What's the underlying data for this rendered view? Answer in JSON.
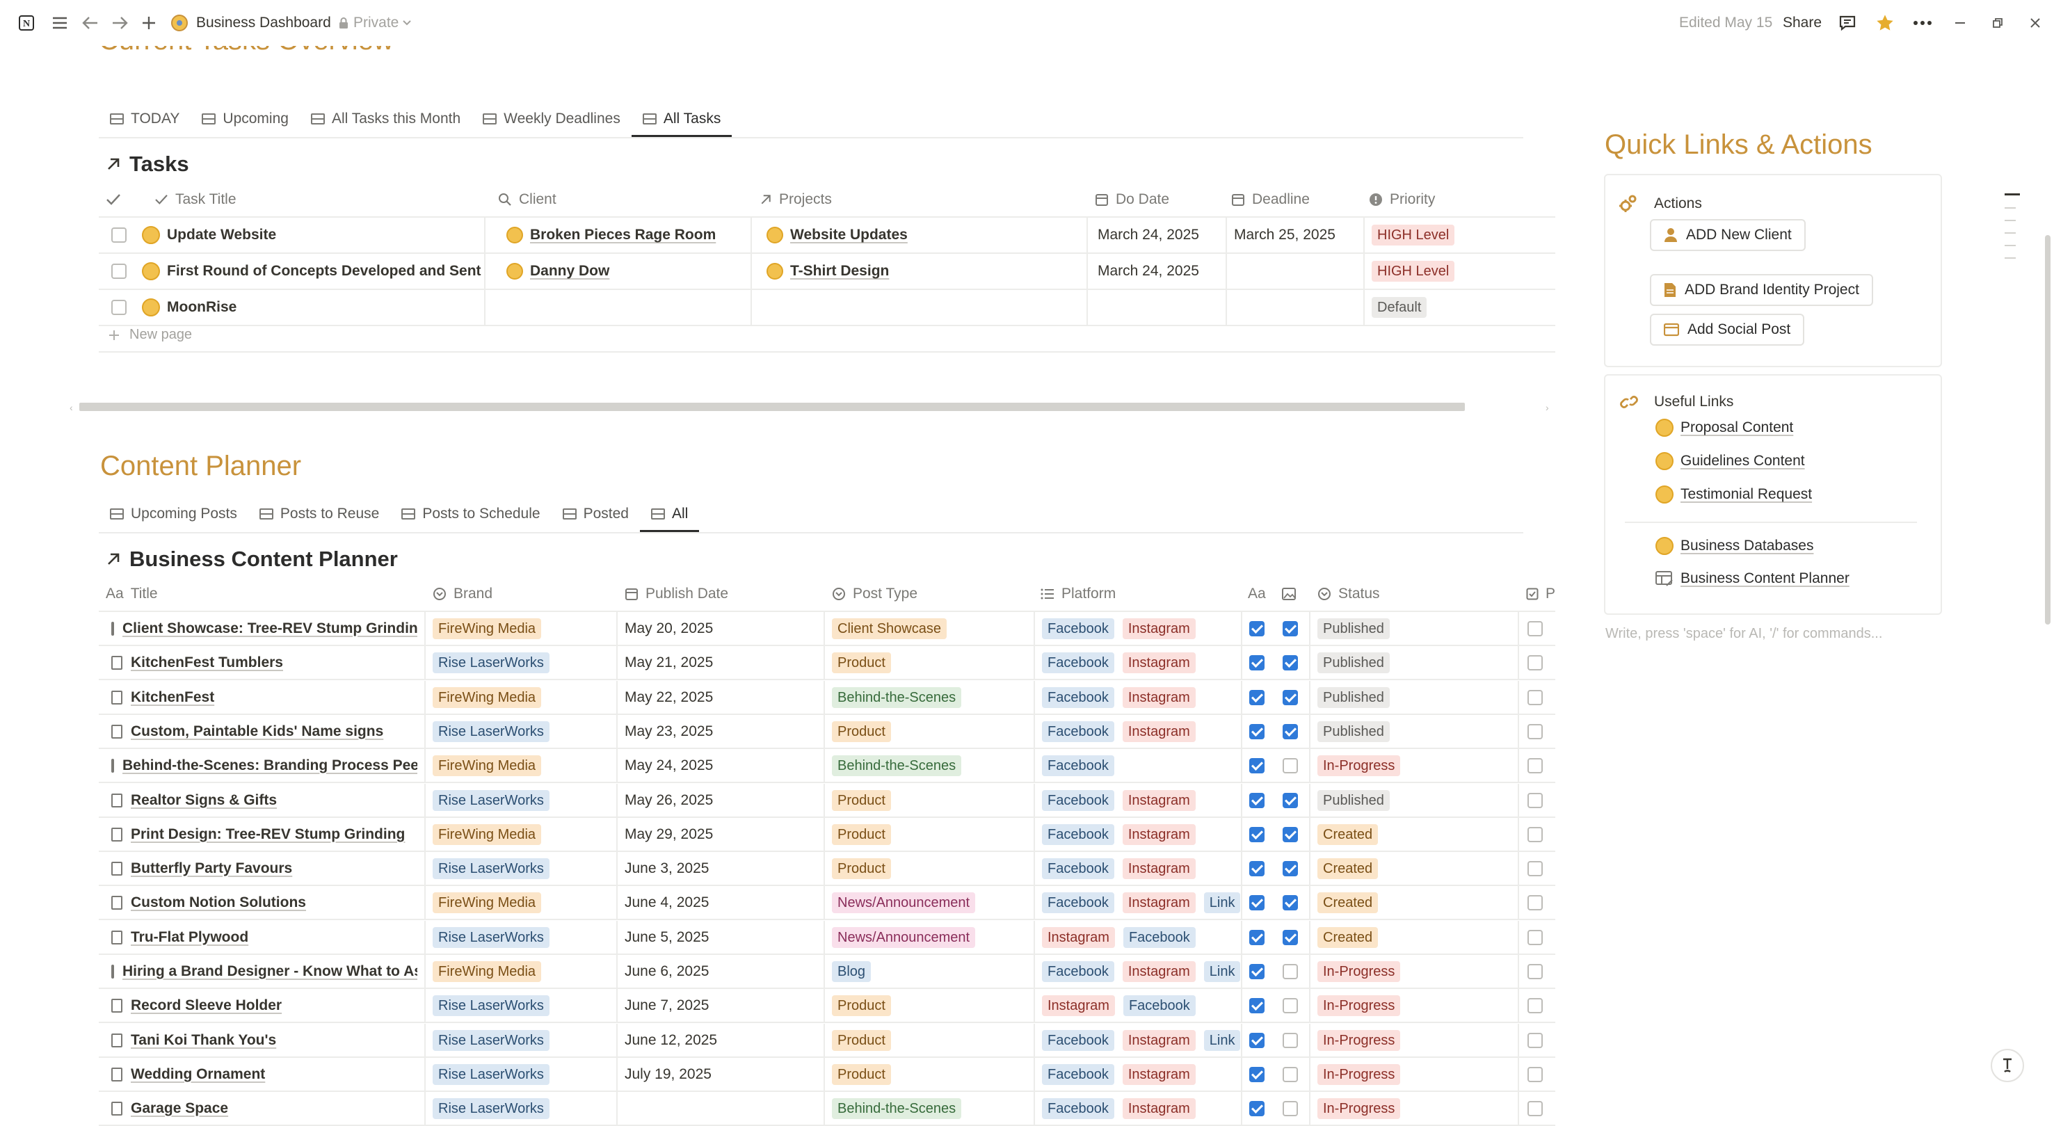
{
  "topbar": {
    "page_title": "Business Dashboard",
    "privacy": "Private",
    "edited": "Edited May 15",
    "share": "Share"
  },
  "tasks_section": {
    "heading": "Current Tasks Overview",
    "tabs": [
      {
        "label": "TODAY"
      },
      {
        "label": "Upcoming"
      },
      {
        "label": "All Tasks this Month"
      },
      {
        "label": "Weekly Deadlines"
      },
      {
        "label": "All Tasks",
        "active": true
      }
    ],
    "db_title": "Tasks",
    "columns": [
      "Task Title",
      "Client",
      "Projects",
      "Do Date",
      "Deadline",
      "Priority"
    ],
    "rows": [
      {
        "title": "Update Website",
        "client": "Broken Pieces Rage Room",
        "project": "Website Updates",
        "do_date": "March 24, 2025",
        "deadline": "March 25, 2025",
        "priority": "HIGH Level"
      },
      {
        "title": "First Round of Concepts Developed and Sent",
        "client": "Danny Dow",
        "project": "T-Shirt Design",
        "do_date": "March 24, 2025",
        "deadline": "",
        "priority": "HIGH Level"
      },
      {
        "title": "MoonRise",
        "client": "",
        "project": "",
        "do_date": "",
        "deadline": "",
        "priority": "Default"
      }
    ],
    "new_page": "New page"
  },
  "content_section": {
    "heading": "Content Planner",
    "tabs": [
      {
        "label": "Upcoming Posts"
      },
      {
        "label": "Posts to Reuse"
      },
      {
        "label": "Posts to Schedule"
      },
      {
        "label": "Posted"
      },
      {
        "label": "All",
        "active": true
      }
    ],
    "db_title": "Business Content Planner",
    "columns": {
      "title": "Title",
      "title_prefix": "Aa",
      "brand": "Brand",
      "publish_date": "Publish Date",
      "post_type": "Post Type",
      "platform": "Platform",
      "aa": "Aa",
      "status": "Status",
      "last": "P"
    },
    "rows": [
      {
        "title": "Client Showcase: Tree-REV Stump Grinding",
        "brand": "FireWing Media",
        "date": "May 20, 2025",
        "type": "Client Showcase",
        "type_color": "orange",
        "platforms": [
          "Facebook",
          "Instagram"
        ],
        "c1": true,
        "c2": true,
        "status": "Published"
      },
      {
        "title": "KitchenFest Tumblers",
        "brand": "Rise LaserWorks",
        "date": "May 21, 2025",
        "type": "Product",
        "type_color": "orange",
        "platforms": [
          "Facebook",
          "Instagram"
        ],
        "c1": true,
        "c2": true,
        "status": "Published"
      },
      {
        "title": "KitchenFest",
        "brand": "FireWing Media",
        "date": "May 22, 2025",
        "type": "Behind-the-Scenes",
        "type_color": "green",
        "platforms": [
          "Facebook",
          "Instagram"
        ],
        "c1": true,
        "c2": true,
        "status": "Published"
      },
      {
        "title": "Custom, Paintable Kids' Name signs",
        "brand": "Rise LaserWorks",
        "date": "May 23, 2025",
        "type": "Product",
        "type_color": "orange",
        "platforms": [
          "Facebook",
          "Instagram"
        ],
        "c1": true,
        "c2": true,
        "status": "Published"
      },
      {
        "title": "Behind-the-Scenes: Branding Process Peek",
        "brand": "FireWing Media",
        "date": "May 24, 2025",
        "type": "Behind-the-Scenes",
        "type_color": "green",
        "platforms": [
          "Facebook"
        ],
        "c1": true,
        "c2": false,
        "status": "In-Progress"
      },
      {
        "title": "Realtor Signs & Gifts",
        "brand": "Rise LaserWorks",
        "date": "May 26, 2025",
        "type": "Product",
        "type_color": "orange",
        "platforms": [
          "Facebook",
          "Instagram"
        ],
        "c1": true,
        "c2": true,
        "status": "Published"
      },
      {
        "title": "Print Design: Tree-REV Stump Grinding",
        "brand": "FireWing Media",
        "date": "May 29, 2025",
        "type": "Product",
        "type_color": "orange",
        "platforms": [
          "Facebook",
          "Instagram"
        ],
        "c1": true,
        "c2": true,
        "status": "Created"
      },
      {
        "title": "Butterfly Party Favours",
        "brand": "Rise LaserWorks",
        "date": "June 3, 2025",
        "type": "Product",
        "type_color": "orange",
        "platforms": [
          "Facebook",
          "Instagram"
        ],
        "c1": true,
        "c2": true,
        "status": "Created"
      },
      {
        "title": "Custom Notion Solutions",
        "brand": "FireWing Media",
        "date": "June 4, 2025",
        "type": "News/Announcement",
        "type_color": "pink",
        "platforms": [
          "Facebook",
          "Instagram",
          "Link"
        ],
        "c1": true,
        "c2": true,
        "status": "Created"
      },
      {
        "title": "Tru-Flat Plywood",
        "brand": "Rise LaserWorks",
        "date": "June 5, 2025",
        "type": "News/Announcement",
        "type_color": "pink",
        "platforms": [
          "Instagram",
          "Facebook"
        ],
        "c1": true,
        "c2": true,
        "status": "Created"
      },
      {
        "title": "Hiring a Brand Designer - Know What to Ask",
        "brand": "FireWing Media",
        "date": "June 6, 2025",
        "type": "Blog",
        "type_color": "blue",
        "platforms": [
          "Facebook",
          "Instagram",
          "Link"
        ],
        "c1": true,
        "c2": false,
        "status": "In-Progress"
      },
      {
        "title": "Record Sleeve Holder",
        "brand": "Rise LaserWorks",
        "date": "June 7, 2025",
        "type": "Product",
        "type_color": "orange",
        "platforms": [
          "Instagram",
          "Facebook"
        ],
        "c1": true,
        "c2": false,
        "status": "In-Progress"
      },
      {
        "title": "Tani Koi Thank You's",
        "brand": "Rise LaserWorks",
        "date": "June 12, 2025",
        "type": "Product",
        "type_color": "orange",
        "platforms": [
          "Facebook",
          "Instagram",
          "Link"
        ],
        "c1": true,
        "c2": false,
        "status": "In-Progress"
      },
      {
        "title": "Wedding Ornament",
        "brand": "Rise LaserWorks",
        "date": "July 19, 2025",
        "type": "Product",
        "type_color": "orange",
        "platforms": [
          "Facebook",
          "Instagram"
        ],
        "c1": true,
        "c2": false,
        "status": "In-Progress"
      },
      {
        "title": "Garage Space",
        "brand": "Rise LaserWorks",
        "date": "",
        "type": "Behind-the-Scenes",
        "type_color": "green",
        "platforms": [
          "Facebook",
          "Instagram"
        ],
        "c1": true,
        "c2": false,
        "status": "In-Progress"
      }
    ]
  },
  "quick_links": {
    "heading": "Quick Links & Actions",
    "actions_title": "Actions",
    "actions": [
      "ADD New Client",
      "ADD Brand Identity Project",
      "Add Social Post"
    ],
    "useful_title": "Useful Links",
    "links": [
      "Proposal Content",
      "Guidelines Content",
      "Testimonial Request"
    ],
    "links2": [
      "Business Databases",
      "Business Content Planner"
    ],
    "placeholder": "Write, press 'space' for AI, '/' for commands..."
  },
  "colors": {
    "accent": "#c8923b",
    "checkbox_blue": "#2f7ad9",
    "high_priority_bg": "#fbe0dd"
  }
}
